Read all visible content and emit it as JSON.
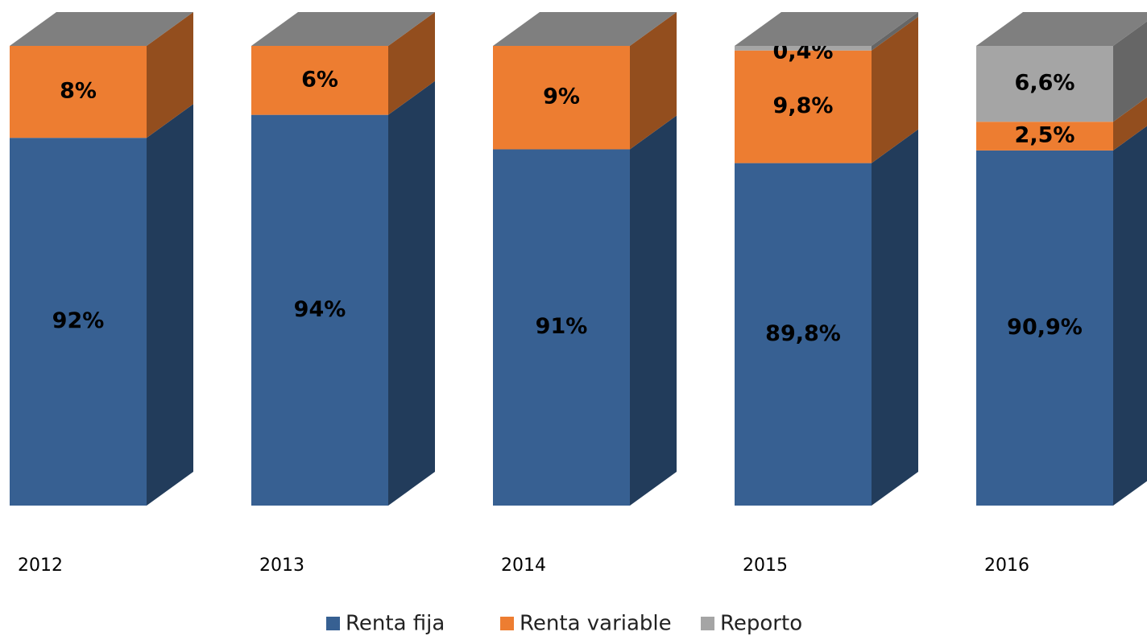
{
  "chart_data": {
    "type": "bar3d_stacked",
    "categories": [
      "2012",
      "2013",
      "2014",
      "2015",
      "2016"
    ],
    "ylim": [
      60,
      100
    ],
    "series": [
      {
        "name": "Renta fija",
        "color": "#376092",
        "values": [
          92,
          94,
          91,
          89.8,
          90.9
        ],
        "value_labels": [
          "92%",
          "94%",
          "91%",
          "89,8%",
          "90,9%"
        ]
      },
      {
        "name": "Renta variable",
        "color": "#ed7d31",
        "values": [
          8,
          6,
          9,
          9.8,
          2.5
        ],
        "value_labels": [
          "8%",
          "6%",
          "9%",
          "9,8%",
          "2,5%"
        ]
      },
      {
        "name": "Reporto",
        "color": "#a5a5a5",
        "values": [
          null,
          null,
          null,
          0.4,
          6.6
        ],
        "value_labels": [
          null,
          null,
          null,
          "0,4%",
          "6,6%"
        ]
      }
    ]
  }
}
